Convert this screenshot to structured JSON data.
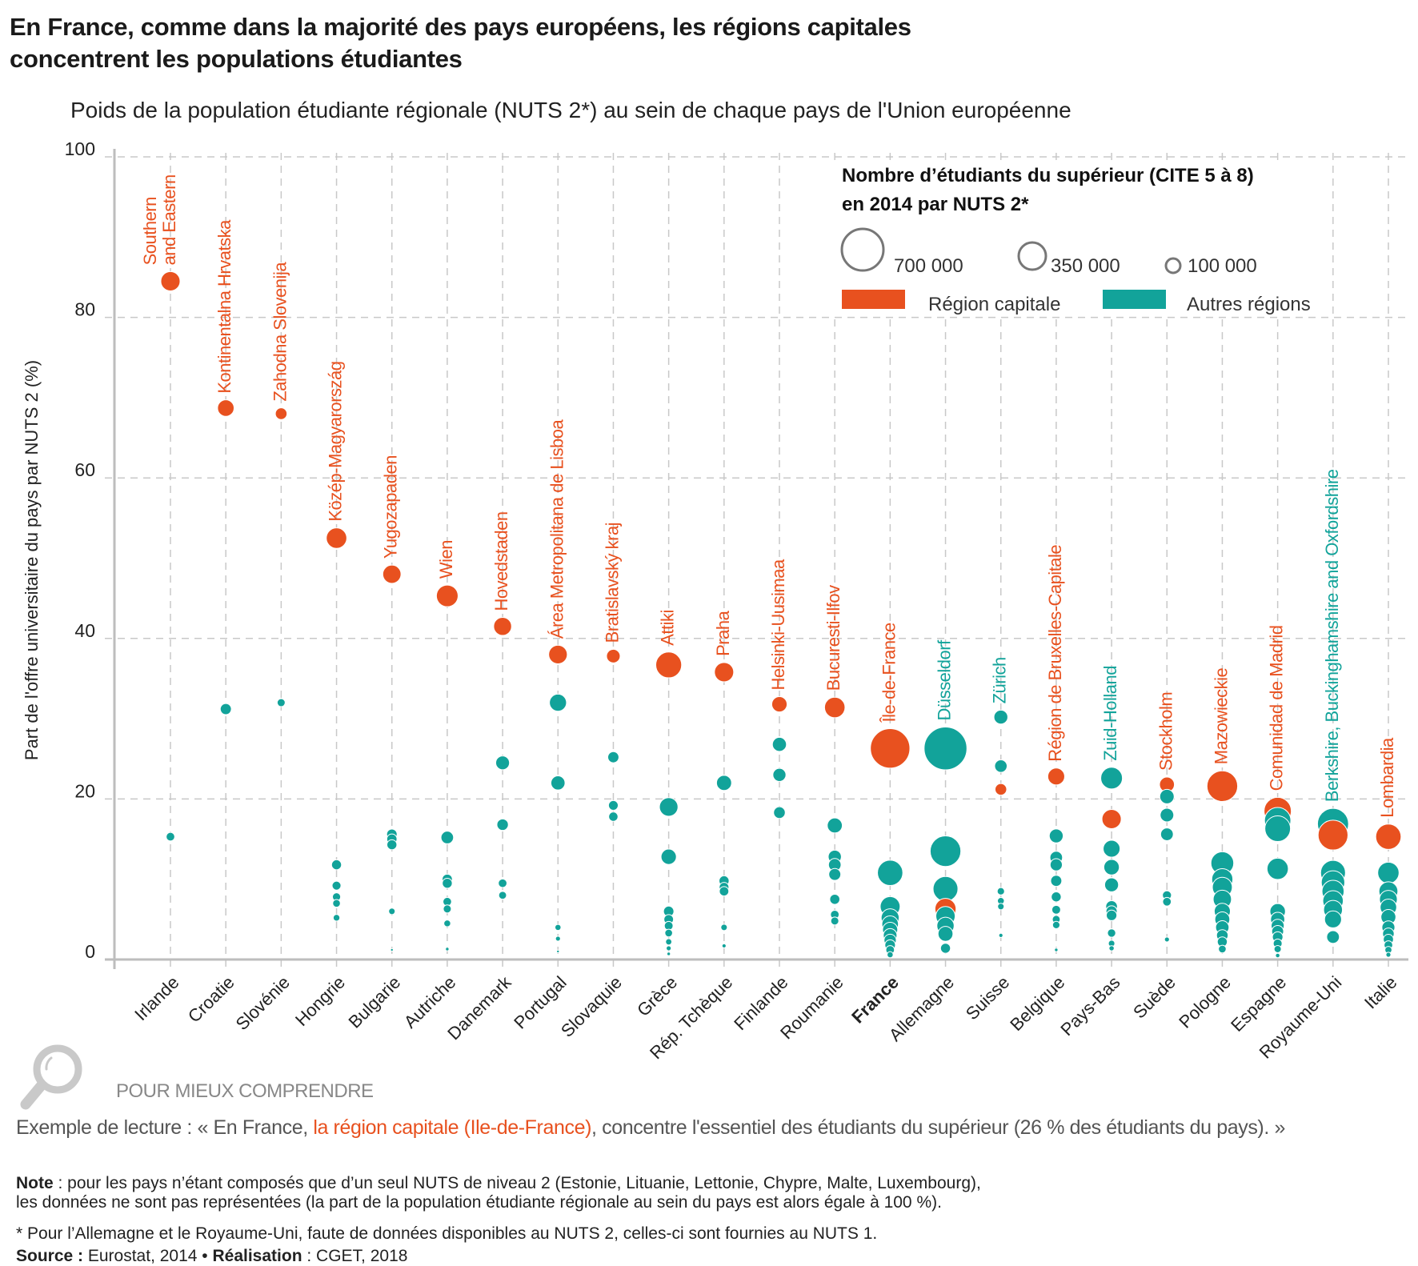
{
  "title_line1": "En France, comme dans la majorité des pays européens, les régions capitales",
  "title_line2": "concentrent les populations étudiantes",
  "subtitle": "Poids de la population étudiante régionale (NUTS 2*) au sein de chaque pays de l'Union européenne",
  "colors": {
    "capital": "#e8511f",
    "other": "#12a39a",
    "grid": "#c8c8c8",
    "axis": "#bdbdbd"
  },
  "legend": {
    "title_line1": "Nombre d’étudiants du supérieur (CITE 5 à 8)",
    "title_line2": "en 2014 par NUTS 2*",
    "sizes": [
      {
        "value": 700000,
        "label": "700 000"
      },
      {
        "value": 350000,
        "label": "350 000"
      },
      {
        "value": 100000,
        "label": "100 000"
      }
    ],
    "capital_label": "Région capitale",
    "other_label": "Autres régions"
  },
  "footer": {
    "section_label": "POUR MIEUX COMPRENDRE",
    "example_prefix": "Exemple de lecture : « En France, ",
    "example_highlight": "la région capitale (Ile-de-France)",
    "example_suffix": ", concentre l'essentiel des étudiants du supérieur (26 % des étudiants du pays). »",
    "note_label": "Note",
    "note_line1": " : pour les pays n’étant composés que d’un seul NUTS de niveau 2 (Estonie, Lituanie, Lettonie, Chypre, Malte, Luxembourg),",
    "note_line2": "les données ne sont pas représentées (la part de la population étudiante régionale au sein du pays est alors égale à 100 %).",
    "star_note": "* Pour l’Allemagne et le Royaume-Uni, faute de données disponibles au NUTS 2, celles-ci sont fournies au NUTS 1.",
    "source_label": "Source :",
    "source_value": " Eurostat, 2014 • ",
    "realisation_label": "Réalisation",
    "realisation_value": " : CGET, 2018"
  },
  "chart_data": {
    "type": "scatter",
    "title": "Poids de la population étudiante régionale (NUTS 2*) au sein de chaque pays de l'Union européenne",
    "xlabel": "",
    "ylabel": "Part de l'offre universitaire du pays par NUTS 2 (%)",
    "ylim": [
      0,
      100
    ],
    "yticks": [
      0,
      20,
      40,
      60,
      80,
      100
    ],
    "grid": true,
    "legend_position": "top-right",
    "categories": [
      "Irlande",
      "Croatie",
      "Slovénie",
      "Hongrie",
      "Bulgarie",
      "Autriche",
      "Danemark",
      "Portugal",
      "Slovaquie",
      "Grèce",
      "Rép. Tchèque",
      "Finlande",
      "Roumanie",
      "France",
      "Allemagne",
      "Suisse",
      "Belgique",
      "Pays-Bas",
      "Suède",
      "Pologne",
      "Espagne",
      "Royaume-Uni",
      "Italie"
    ],
    "highlight_category": "France",
    "countries": [
      {
        "country": "Irlande",
        "label": "Southern\nand Eastern",
        "label_type": "capital",
        "capital": {
          "share": 84.5,
          "students": 150000
        },
        "others": [
          {
            "share": 15.3,
            "students": 30000
          }
        ]
      },
      {
        "country": "Croatie",
        "label": "Kontinentalna Hrvatska",
        "label_type": "capital",
        "capital": {
          "share": 68.7,
          "students": 110000
        },
        "others": [
          {
            "share": 31.2,
            "students": 50000
          }
        ]
      },
      {
        "country": "Slovénie",
        "label": "Zahodna Slovenija",
        "label_type": "capital",
        "capital": {
          "share": 68.0,
          "students": 55000
        },
        "others": [
          {
            "share": 32.0,
            "students": 26000
          }
        ]
      },
      {
        "country": "Hongrie",
        "label": "Közép-Magyarország",
        "label_type": "capital",
        "capital": {
          "share": 52.5,
          "students": 170000
        },
        "others": [
          {
            "share": 11.8,
            "students": 40000
          },
          {
            "share": 9.2,
            "students": 32000
          },
          {
            "share": 7.8,
            "students": 27000
          },
          {
            "share": 7.0,
            "students": 24000
          },
          {
            "share": 5.2,
            "students": 18000
          }
        ]
      },
      {
        "country": "Bulgarie",
        "label": "Yugozapaden",
        "label_type": "capital",
        "capital": {
          "share": 48.0,
          "students": 135000
        },
        "others": [
          {
            "share": 15.6,
            "students": 44000
          },
          {
            "share": 15.0,
            "students": 42000
          },
          {
            "share": 14.3,
            "students": 40000
          },
          {
            "share": 6.0,
            "students": 17000
          },
          {
            "share": 1.2,
            "students": 3000
          }
        ]
      },
      {
        "country": "Autriche",
        "label": "Wien",
        "label_type": "capital",
        "capital": {
          "share": 45.3,
          "students": 190000
        },
        "others": [
          {
            "share": 15.2,
            "students": 64000
          },
          {
            "share": 10.0,
            "students": 42000
          },
          {
            "share": 9.5,
            "students": 40000
          },
          {
            "share": 7.2,
            "students": 30000
          },
          {
            "share": 6.3,
            "students": 26000
          },
          {
            "share": 4.5,
            "students": 19000
          },
          {
            "share": 1.3,
            "students": 5000
          }
        ]
      },
      {
        "country": "Danemark",
        "label": "Hovedstaden",
        "label_type": "capital",
        "capital": {
          "share": 41.5,
          "students": 130000
        },
        "others": [
          {
            "share": 24.5,
            "students": 77000
          },
          {
            "share": 16.8,
            "students": 53000
          },
          {
            "share": 9.5,
            "students": 30000
          },
          {
            "share": 8.0,
            "students": 25000
          }
        ]
      },
      {
        "country": "Portugal",
        "label": "Área Metropolitana de Lisboa",
        "label_type": "capital",
        "capital": {
          "share": 38.0,
          "students": 140000
        },
        "others": [
          {
            "share": 32.0,
            "students": 118000
          },
          {
            "share": 22.0,
            "students": 81000
          },
          {
            "share": 4.0,
            "students": 15000
          },
          {
            "share": 2.6,
            "students": 10000
          },
          {
            "share": 1.0,
            "students": 3000
          }
        ]
      },
      {
        "country": "Slovaquie",
        "label": "Bratislavský kraj",
        "label_type": "capital",
        "capital": {
          "share": 37.8,
          "students": 75000
        },
        "others": [
          {
            "share": 25.2,
            "students": 50000
          },
          {
            "share": 19.2,
            "students": 38000
          },
          {
            "share": 17.8,
            "students": 35000
          }
        ]
      },
      {
        "country": "Grèce",
        "label": "Attiki",
        "label_type": "capital",
        "capital": {
          "share": 36.7,
          "students": 270000
        },
        "others": [
          {
            "share": 19.0,
            "students": 140000
          },
          {
            "share": 12.8,
            "students": 95000
          },
          {
            "share": 6.0,
            "students": 44000
          },
          {
            "share": 5.0,
            "students": 37000
          },
          {
            "share": 4.2,
            "students": 31000
          },
          {
            "share": 3.3,
            "students": 24000
          },
          {
            "share": 2.2,
            "students": 16000
          },
          {
            "share": 1.4,
            "students": 10000
          },
          {
            "share": 0.7,
            "students": 5000
          }
        ]
      },
      {
        "country": "Rép. Tchèque",
        "label": "Praha",
        "label_type": "capital",
        "capital": {
          "share": 35.8,
          "students": 150000
        },
        "others": [
          {
            "share": 22.0,
            "students": 92000
          },
          {
            "share": 9.8,
            "students": 41000
          },
          {
            "share": 9.0,
            "students": 38000
          },
          {
            "share": 8.5,
            "students": 36000
          },
          {
            "share": 4.0,
            "students": 17000
          },
          {
            "share": 1.7,
            "students": 7000
          }
        ]
      },
      {
        "country": "Finlande",
        "label": "Helsinki-Uusimaa",
        "label_type": "capital",
        "capital": {
          "share": 31.8,
          "students": 95000
        },
        "others": [
          {
            "share": 26.8,
            "students": 80000
          },
          {
            "share": 23.0,
            "students": 69000
          },
          {
            "share": 18.3,
            "students": 55000
          }
        ]
      },
      {
        "country": "Roumanie",
        "label": "Bucuresti-Ilfov",
        "label_type": "capital",
        "capital": {
          "share": 31.4,
          "students": 170000
        },
        "others": [
          {
            "share": 16.7,
            "students": 91000
          },
          {
            "share": 12.8,
            "students": 70000
          },
          {
            "share": 11.8,
            "students": 64000
          },
          {
            "share": 10.6,
            "students": 58000
          },
          {
            "share": 7.5,
            "students": 41000
          },
          {
            "share": 5.6,
            "students": 30000
          },
          {
            "share": 4.8,
            "students": 26000
          }
        ]
      },
      {
        "country": "France",
        "label": "Île-de-France",
        "label_type": "capital",
        "capital": {
          "share": 26.3,
          "students": 630000
        },
        "others": [
          {
            "share": 10.8,
            "students": 260000
          },
          {
            "share": 6.6,
            "students": 160000
          },
          {
            "share": 5.2,
            "students": 130000
          },
          {
            "share": 4.4,
            "students": 110000
          },
          {
            "share": 3.7,
            "students": 92000
          },
          {
            "share": 3.0,
            "students": 75000
          },
          {
            "share": 2.4,
            "students": 60000
          },
          {
            "share": 1.8,
            "students": 45000
          },
          {
            "share": 1.2,
            "students": 30000
          },
          {
            "share": 0.6,
            "students": 15000
          }
        ]
      },
      {
        "country": "Allemagne",
        "label": "Düsseldorf",
        "label_type": "other",
        "capital": {
          "share": 6.3,
          "students": 180000
        },
        "others": [
          {
            "share": 26.3,
            "students": 740000
          },
          {
            "share": 13.5,
            "students": 380000
          },
          {
            "share": 8.8,
            "students": 250000
          },
          {
            "share": 5.4,
            "students": 150000
          },
          {
            "share": 4.2,
            "students": 120000
          },
          {
            "share": 3.2,
            "students": 90000
          },
          {
            "share": 1.4,
            "students": 40000
          }
        ]
      },
      {
        "country": "Suisse",
        "label": "Zürich",
        "label_type": "other",
        "capital": {
          "share": 21.2,
          "students": 55000
        },
        "others": [
          {
            "share": 30.2,
            "students": 78000
          },
          {
            "share": 24.1,
            "students": 63000
          },
          {
            "share": 8.5,
            "students": 22000
          },
          {
            "share": 7.3,
            "students": 19000
          },
          {
            "share": 6.6,
            "students": 17000
          },
          {
            "share": 3.0,
            "students": 7000
          }
        ]
      },
      {
        "country": "Belgique",
        "label": "Région de Bruxelles-Capitale",
        "label_type": "capital",
        "capital": {
          "share": 22.8,
          "students": 115000
        },
        "others": [
          {
            "share": 15.4,
            "students": 78000
          },
          {
            "share": 12.7,
            "students": 64000
          },
          {
            "share": 11.8,
            "students": 60000
          },
          {
            "share": 9.8,
            "students": 50000
          },
          {
            "share": 7.8,
            "students": 40000
          },
          {
            "share": 6.2,
            "students": 31000
          },
          {
            "share": 5.0,
            "students": 25000
          },
          {
            "share": 4.3,
            "students": 22000
          },
          {
            "share": 1.2,
            "students": 5000
          }
        ]
      },
      {
        "country": "Pays-Bas",
        "label": "Zuid-Holland",
        "label_type": "other",
        "capital": {
          "share": 17.5,
          "students": 150000
        },
        "others": [
          {
            "share": 22.6,
            "students": 190000
          },
          {
            "share": 13.8,
            "students": 115000
          },
          {
            "share": 11.5,
            "students": 97000
          },
          {
            "share": 9.3,
            "students": 78000
          },
          {
            "share": 6.6,
            "students": 55000
          },
          {
            "share": 6.0,
            "students": 50000
          },
          {
            "share": 5.5,
            "students": 45000
          },
          {
            "share": 3.3,
            "students": 28000
          },
          {
            "share": 2.0,
            "students": 17000
          },
          {
            "share": 1.4,
            "students": 11000
          }
        ]
      },
      {
        "country": "Suède",
        "label": "Stockholm",
        "label_type": "capital",
        "capital": {
          "share": 21.8,
          "students": 90000
        },
        "others": [
          {
            "share": 20.3,
            "students": 84000
          },
          {
            "share": 18.0,
            "students": 75000
          },
          {
            "share": 15.6,
            "students": 65000
          },
          {
            "share": 8.0,
            "students": 33000
          },
          {
            "share": 7.2,
            "students": 30000
          },
          {
            "share": 2.5,
            "students": 10000
          }
        ]
      },
      {
        "country": "Pologne",
        "label": "Mazowieckie",
        "label_type": "capital",
        "capital": {
          "share": 21.6,
          "students": 380000
        },
        "others": [
          {
            "share": 12.0,
            "students": 210000
          },
          {
            "share": 10.0,
            "students": 180000
          },
          {
            "share": 9.0,
            "students": 160000
          },
          {
            "share": 7.5,
            "students": 135000
          },
          {
            "share": 6.0,
            "students": 105000
          },
          {
            "share": 5.0,
            "students": 90000
          },
          {
            "share": 4.0,
            "students": 72000
          },
          {
            "share": 3.0,
            "students": 54000
          },
          {
            "share": 2.2,
            "students": 40000
          },
          {
            "share": 1.3,
            "students": 24000
          }
        ]
      },
      {
        "country": "Espagne",
        "label": "Comunidad de Madrid",
        "label_type": "capital",
        "capital": {
          "share": 18.5,
          "students": 300000
        },
        "others": [
          {
            "share": 17.3,
            "students": 280000
          },
          {
            "share": 16.3,
            "students": 265000
          },
          {
            "share": 11.3,
            "students": 183000
          },
          {
            "share": 6.0,
            "students": 97000
          },
          {
            "share": 5.0,
            "students": 81000
          },
          {
            "share": 4.2,
            "students": 68000
          },
          {
            "share": 3.5,
            "students": 57000
          },
          {
            "share": 2.8,
            "students": 45000
          },
          {
            "share": 2.0,
            "students": 32000
          },
          {
            "share": 1.3,
            "students": 21000
          },
          {
            "share": 0.5,
            "students": 8000
          }
        ]
      },
      {
        "country": "Royaume-Uni",
        "label": "Berkshire, Buckinghamshire and Oxfordshire",
        "label_type": "other",
        "capital": {
          "share": 15.5,
          "students": 360000
        },
        "others": [
          {
            "share": 16.9,
            "students": 390000
          },
          {
            "share": 10.8,
            "students": 250000
          },
          {
            "share": 9.6,
            "students": 222000
          },
          {
            "share": 8.5,
            "students": 197000
          },
          {
            "share": 7.3,
            "students": 169000
          },
          {
            "share": 6.2,
            "students": 143000
          },
          {
            "share": 5.0,
            "students": 116000
          },
          {
            "share": 2.8,
            "students": 65000
          }
        ]
      },
      {
        "country": "Italie",
        "label": "Lombardia",
        "label_type": "capital",
        "capital": {
          "share": 15.3,
          "students": 260000
        },
        "others": [
          {
            "share": 10.8,
            "students": 184000
          },
          {
            "share": 8.5,
            "students": 145000
          },
          {
            "share": 7.5,
            "students": 128000
          },
          {
            "share": 6.5,
            "students": 110000
          },
          {
            "share": 5.3,
            "students": 90000
          },
          {
            "share": 4.0,
            "students": 68000
          },
          {
            "share": 3.2,
            "students": 54000
          },
          {
            "share": 2.5,
            "students": 42000
          },
          {
            "share": 1.8,
            "students": 30000
          },
          {
            "share": 1.2,
            "students": 20000
          },
          {
            "share": 0.6,
            "students": 10000
          }
        ]
      }
    ]
  }
}
